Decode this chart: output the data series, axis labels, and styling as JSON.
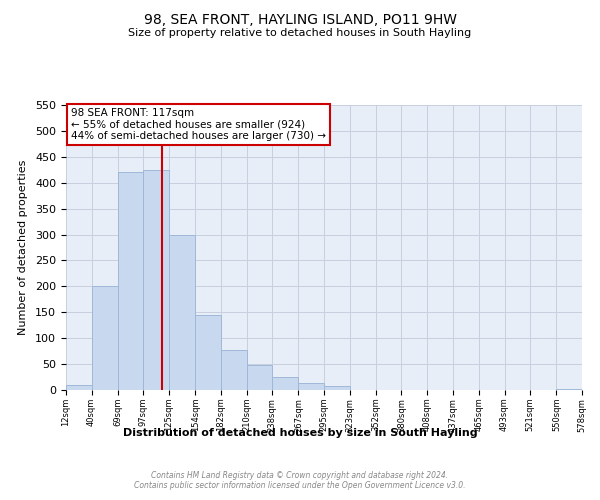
{
  "title": "98, SEA FRONT, HAYLING ISLAND, PO11 9HW",
  "subtitle": "Size of property relative to detached houses in South Hayling",
  "xlabel": "Distribution of detached houses by size in South Hayling",
  "ylabel": "Number of detached properties",
  "bar_color": "#c8d8ee",
  "bar_edge_color": "#a0b8d8",
  "vline_x": 117,
  "vline_color": "#cc0000",
  "annotation_lines": [
    "98 SEA FRONT: 117sqm",
    "← 55% of detached houses are smaller (924)",
    "44% of semi-detached houses are larger (730) →"
  ],
  "annotation_box_color": "white",
  "annotation_box_edge": "#cc0000",
  "footer_lines": [
    "Contains HM Land Registry data © Crown copyright and database right 2024.",
    "Contains public sector information licensed under the Open Government Licence v3.0."
  ],
  "bin_edges": [
    12,
    40,
    69,
    97,
    125,
    154,
    182,
    210,
    238,
    267,
    295,
    323,
    352,
    380,
    408,
    437,
    465,
    493,
    521,
    550,
    578
  ],
  "bin_counts": [
    10,
    200,
    420,
    425,
    300,
    145,
    78,
    48,
    25,
    13,
    8,
    0,
    0,
    0,
    0,
    0,
    0,
    0,
    0,
    2
  ],
  "xlim_left": 12,
  "xlim_right": 578,
  "ylim_top": 550,
  "yticks": [
    0,
    50,
    100,
    150,
    200,
    250,
    300,
    350,
    400,
    450,
    500,
    550
  ],
  "xtick_labels": [
    "12sqm",
    "40sqm",
    "69sqm",
    "97sqm",
    "125sqm",
    "154sqm",
    "182sqm",
    "210sqm",
    "238sqm",
    "267sqm",
    "295sqm",
    "323sqm",
    "352sqm",
    "380sqm",
    "408sqm",
    "437sqm",
    "465sqm",
    "493sqm",
    "521sqm",
    "550sqm",
    "578sqm"
  ],
  "bg_color": "#e8eef8",
  "grid_color": "#c8d0e0"
}
